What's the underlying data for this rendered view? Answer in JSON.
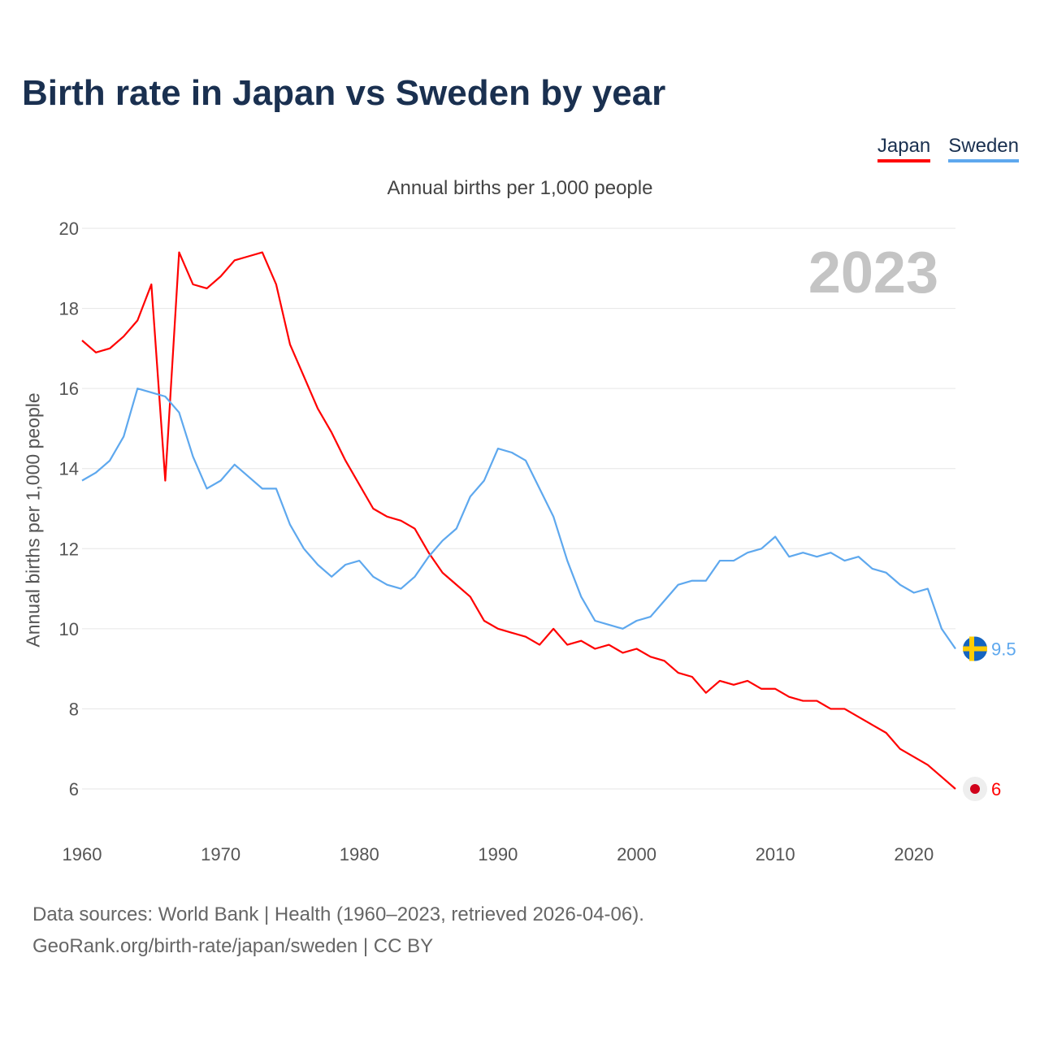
{
  "title": "Birth rate in Japan vs Sweden by year",
  "chart_data": {
    "type": "line",
    "title": "Birth rate in Japan vs Sweden by year",
    "subtitle": "Annual births per 1,000 people",
    "ylabel": "Annual births per 1,000 people",
    "xlabel": "",
    "xlim": [
      1960,
      2023
    ],
    "ylim": [
      6,
      20
    ],
    "xticks": [
      "1960",
      "1970",
      "1980",
      "1990",
      "2000",
      "2010",
      "2020"
    ],
    "yticks": [
      "6",
      "8",
      "10",
      "12",
      "14",
      "16",
      "18",
      "20"
    ],
    "grid": true,
    "legend_position": "top-right",
    "year_label": "2023",
    "x": [
      1960,
      1961,
      1962,
      1963,
      1964,
      1965,
      1966,
      1967,
      1968,
      1969,
      1970,
      1971,
      1972,
      1973,
      1974,
      1975,
      1976,
      1977,
      1978,
      1979,
      1980,
      1981,
      1982,
      1983,
      1984,
      1985,
      1986,
      1987,
      1988,
      1989,
      1990,
      1991,
      1992,
      1993,
      1994,
      1995,
      1996,
      1997,
      1998,
      1999,
      2000,
      2001,
      2002,
      2003,
      2004,
      2005,
      2006,
      2007,
      2008,
      2009,
      2010,
      2011,
      2012,
      2013,
      2014,
      2015,
      2016,
      2017,
      2018,
      2019,
      2020,
      2021,
      2022,
      2023
    ],
    "series": [
      {
        "name": "Japan",
        "color": "#ff0000",
        "end_label": "6",
        "values": [
          17.2,
          16.9,
          17.0,
          17.3,
          17.7,
          18.6,
          13.7,
          19.4,
          18.6,
          18.5,
          18.8,
          19.2,
          19.3,
          19.4,
          18.6,
          17.1,
          16.3,
          15.5,
          14.9,
          14.2,
          13.6,
          13.0,
          12.8,
          12.7,
          12.5,
          11.9,
          11.4,
          11.1,
          10.8,
          10.2,
          10.0,
          9.9,
          9.8,
          9.6,
          10.0,
          9.6,
          9.7,
          9.5,
          9.6,
          9.4,
          9.5,
          9.3,
          9.2,
          8.9,
          8.8,
          8.4,
          8.7,
          8.6,
          8.7,
          8.5,
          8.5,
          8.3,
          8.2,
          8.2,
          8.0,
          8.0,
          7.8,
          7.6,
          7.4,
          7.0,
          6.8,
          6.6,
          6.3,
          6.0
        ]
      },
      {
        "name": "Sweden",
        "color": "#5ea8ee",
        "end_label": "9.5",
        "values": [
          13.7,
          13.9,
          14.2,
          14.8,
          16.0,
          15.9,
          15.8,
          15.4,
          14.3,
          13.5,
          13.7,
          14.1,
          13.8,
          13.5,
          13.5,
          12.6,
          12.0,
          11.6,
          11.3,
          11.6,
          11.7,
          11.3,
          11.1,
          11.0,
          11.3,
          11.8,
          12.2,
          12.5,
          13.3,
          13.7,
          14.5,
          14.4,
          14.2,
          13.5,
          12.8,
          11.7,
          10.8,
          10.2,
          10.1,
          10.0,
          10.2,
          10.3,
          10.7,
          11.1,
          11.2,
          11.2,
          11.7,
          11.7,
          11.9,
          12.0,
          12.3,
          11.8,
          11.9,
          11.8,
          11.9,
          11.7,
          11.8,
          11.5,
          11.4,
          11.1,
          10.9,
          11.0,
          10.0,
          9.5
        ]
      }
    ]
  },
  "footer": {
    "line1": "Data sources: World Bank | Health (1960–2023, retrieved 2026-04-06).",
    "line2": "GeoRank.org/birth-rate/japan/sweden | CC BY"
  }
}
